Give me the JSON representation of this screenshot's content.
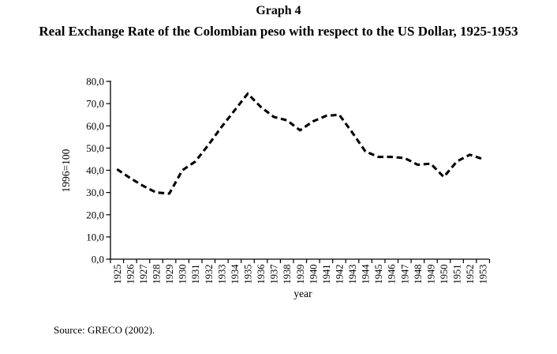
{
  "chart_data": {
    "type": "line",
    "title": "Graph 4",
    "subtitle": "Real Exchange Rate of the Colombian peso with respect to the US Dollar, 1925-1953",
    "xlabel": "year",
    "ylabel": "1996=100",
    "source": "Source: GRECO (2002).",
    "x": [
      1925,
      1926,
      1927,
      1928,
      1929,
      1930,
      1931,
      1932,
      1933,
      1934,
      1935,
      1936,
      1937,
      1938,
      1939,
      1940,
      1941,
      1942,
      1943,
      1944,
      1945,
      1946,
      1947,
      1948,
      1949,
      1950,
      1951,
      1952,
      1953
    ],
    "values": [
      40.5,
      36.5,
      33.0,
      30.0,
      29.5,
      40.0,
      44.0,
      51.5,
      59.5,
      67.0,
      74.5,
      68.5,
      64.0,
      62.5,
      58.0,
      62.0,
      64.5,
      65.0,
      57.0,
      48.5,
      46.0,
      46.0,
      45.5,
      42.5,
      43.0,
      37.0,
      44.0,
      47.0,
      45.0
    ],
    "ylim": [
      0,
      80
    ],
    "ytick_step": 10,
    "y_tick_labels": [
      "0,0",
      "10,0",
      "20,0",
      "30,0",
      "40,0",
      "50,0",
      "60,0",
      "70,0",
      "80,0"
    ],
    "grid": false,
    "legend": null,
    "line_style": "dashed",
    "line_color": "#000000",
    "axis_color": "#000000",
    "background_color": "#ffffff"
  }
}
